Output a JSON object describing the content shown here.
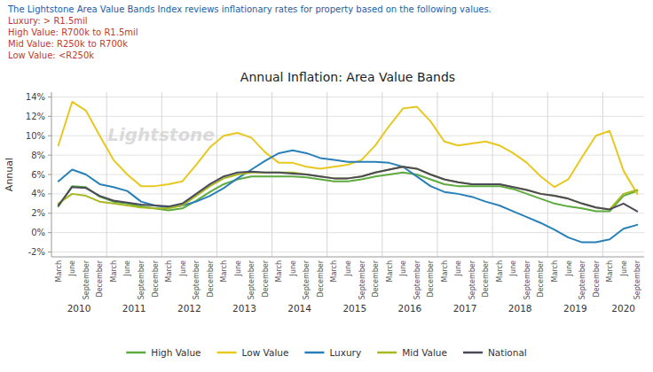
{
  "chart_data": {
    "type": "line",
    "title": "Annual Inflation: Area Value Bands",
    "subtitle": [
      {
        "text": "The Lightstone Area Value Bands Index reviews inflationary rates for property based on the following values.",
        "color": "#1a5ea8"
      },
      {
        "text": "Luxury: > R1.5mil",
        "color": "#c0392b"
      },
      {
        "text": "High Value: R700k to R1.5mil",
        "color": "#c0392b"
      },
      {
        "text": "Mid Value: R250k to R700k",
        "color": "#c0392b"
      },
      {
        "text": "Low Value: <R250k",
        "color": "#c0392b"
      }
    ],
    "annotations": [
      {
        "text": "Lightstone",
        "color": "#cccccc"
      }
    ],
    "y_label": "Annual",
    "categories": [
      "March",
      "June",
      "September",
      "December",
      "March",
      "June",
      "September",
      "December",
      "March",
      "June",
      "September",
      "December",
      "March",
      "June",
      "September",
      "December",
      "March",
      "June",
      "September",
      "December",
      "March",
      "June",
      "September",
      "December",
      "March",
      "June",
      "September",
      "December",
      "March",
      "June",
      "September",
      "December",
      "March",
      "June",
      "September",
      "December",
      "March",
      "June",
      "September",
      "December",
      "March",
      "June",
      "September"
    ],
    "x_groups": [
      {
        "label": "2010",
        "size": 4
      },
      {
        "label": "2011",
        "size": 4
      },
      {
        "label": "2012",
        "size": 4
      },
      {
        "label": "2013",
        "size": 4
      },
      {
        "label": "2014",
        "size": 4
      },
      {
        "label": "2015",
        "size": 4
      },
      {
        "label": "2016",
        "size": 4
      },
      {
        "label": "2017",
        "size": 4
      },
      {
        "label": "2018",
        "size": 4
      },
      {
        "label": "2019",
        "size": 4
      },
      {
        "label": "2020",
        "size": 3
      }
    ],
    "ylim": [
      -0.025,
      0.145
    ],
    "yticks": [
      {
        "value": -0.02,
        "label": "-2%"
      },
      {
        "value": 0.0,
        "label": "0%"
      },
      {
        "value": 0.02,
        "label": "2%"
      },
      {
        "value": 0.04,
        "label": "4%"
      },
      {
        "value": 0.06,
        "label": "6%"
      },
      {
        "value": 0.08,
        "label": "8%"
      },
      {
        "value": 0.1,
        "label": "10%"
      },
      {
        "value": 0.12,
        "label": "12%"
      },
      {
        "value": 0.14,
        "label": "14%"
      }
    ],
    "grid": true,
    "legend": "bottom",
    "series": [
      {
        "name": "High Value",
        "color": "#5daa3f",
        "values": [
          0.027,
          0.048,
          0.047,
          0.037,
          0.032,
          0.03,
          0.027,
          0.025,
          0.023,
          0.025,
          0.033,
          0.042,
          0.05,
          0.055,
          0.058,
          0.058,
          0.058,
          0.058,
          0.057,
          0.055,
          0.053,
          0.053,
          0.055,
          0.058,
          0.06,
          0.062,
          0.06,
          0.055,
          0.05,
          0.048,
          0.048,
          0.048,
          0.048,
          0.045,
          0.04,
          0.035,
          0.03,
          0.027,
          0.025,
          0.022,
          0.022,
          0.038,
          0.043
        ]
      },
      {
        "name": "Low Value",
        "color": "#e8c820",
        "values": [
          0.09,
          0.135,
          0.126,
          0.1,
          0.075,
          0.06,
          0.048,
          0.048,
          0.05,
          0.053,
          0.07,
          0.088,
          0.1,
          0.103,
          0.098,
          0.083,
          0.072,
          0.072,
          0.068,
          0.066,
          0.068,
          0.07,
          0.075,
          0.09,
          0.11,
          0.128,
          0.13,
          0.115,
          0.094,
          0.09,
          0.092,
          0.094,
          0.09,
          0.082,
          0.072,
          0.058,
          0.047,
          0.055,
          0.078,
          0.1,
          0.105,
          0.064,
          0.04
        ]
      },
      {
        "name": "Luxury",
        "color": "#2980b9",
        "values": [
          0.053,
          0.065,
          0.06,
          0.05,
          0.047,
          0.043,
          0.032,
          0.028,
          0.026,
          0.028,
          0.032,
          0.038,
          0.046,
          0.056,
          0.065,
          0.074,
          0.082,
          0.085,
          0.082,
          0.077,
          0.075,
          0.073,
          0.073,
          0.073,
          0.072,
          0.068,
          0.058,
          0.048,
          0.042,
          0.04,
          0.037,
          0.032,
          0.028,
          0.022,
          0.016,
          0.01,
          0.003,
          -0.005,
          -0.01,
          -0.01,
          -0.007,
          0.004,
          0.008
        ]
      },
      {
        "name": "Mid Value",
        "color": "#a8b820",
        "values": [
          0.03,
          0.04,
          0.038,
          0.032,
          0.03,
          0.028,
          0.026,
          0.025,
          0.025,
          0.028,
          0.038,
          0.048,
          0.056,
          0.06,
          0.062,
          0.062,
          0.062,
          0.062,
          0.06,
          0.058,
          0.056,
          0.056,
          0.058,
          0.062,
          0.065,
          0.068,
          0.066,
          0.06,
          0.055,
          0.052,
          0.05,
          0.05,
          0.05,
          0.047,
          0.044,
          0.04,
          0.038,
          0.035,
          0.03,
          0.026,
          0.024,
          0.04,
          0.044
        ]
      },
      {
        "name": "National",
        "color": "#4a4a5a",
        "values": [
          0.028,
          0.047,
          0.046,
          0.038,
          0.033,
          0.031,
          0.029,
          0.028,
          0.027,
          0.03,
          0.04,
          0.05,
          0.058,
          0.062,
          0.063,
          0.062,
          0.062,
          0.061,
          0.06,
          0.058,
          0.056,
          0.056,
          0.058,
          0.062,
          0.065,
          0.068,
          0.066,
          0.06,
          0.055,
          0.052,
          0.05,
          0.05,
          0.05,
          0.047,
          0.044,
          0.04,
          0.038,
          0.035,
          0.03,
          0.026,
          0.024,
          0.03,
          0.022
        ]
      }
    ]
  }
}
